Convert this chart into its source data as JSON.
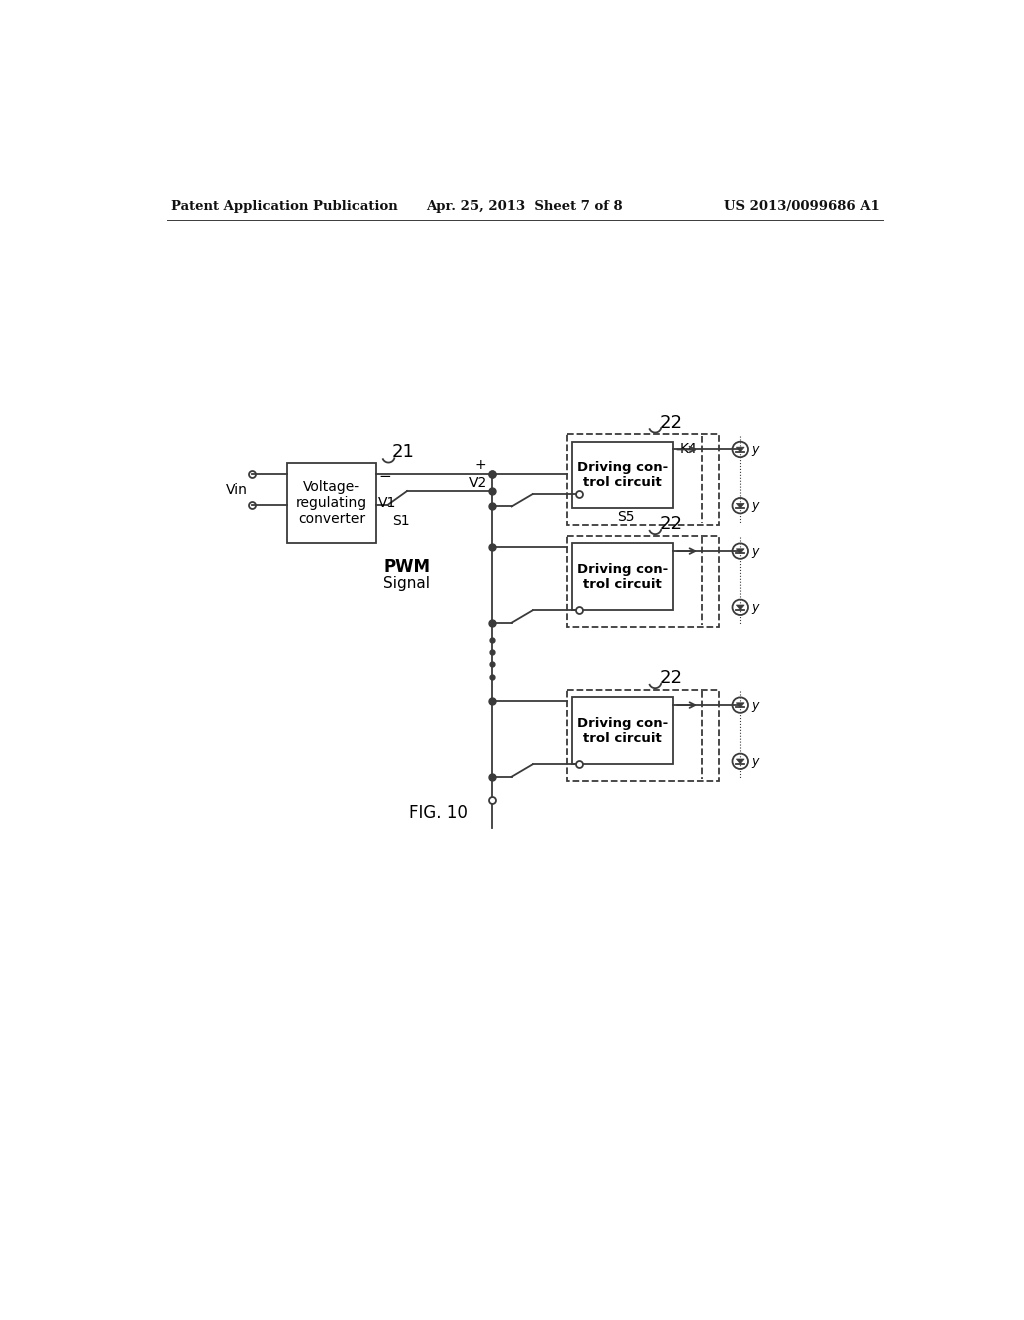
{
  "bg_color": "#ffffff",
  "header_left": "Patent Application Publication",
  "header_center": "Apr. 25, 2013  Sheet 7 of 8",
  "header_right": "US 2013/0099686 A1",
  "fig_label": "FIG. 10",
  "block21_text": "Voltage-\nregulating\nconverter",
  "block21_label": "21",
  "v1_label": "V1",
  "s1_label": "S1",
  "vin_label": "Vin",
  "v2_label": "V2",
  "plus_label": "+",
  "minus_label": "−",
  "pwm_label": "PWM\nSignal",
  "block22_label": "22",
  "driving_text": "Driving con-\ntrol circuit",
  "k4_label": "K4",
  "s5_label": "S5",
  "line_color": "#3a3a3a",
  "box_color": "#3a3a3a"
}
